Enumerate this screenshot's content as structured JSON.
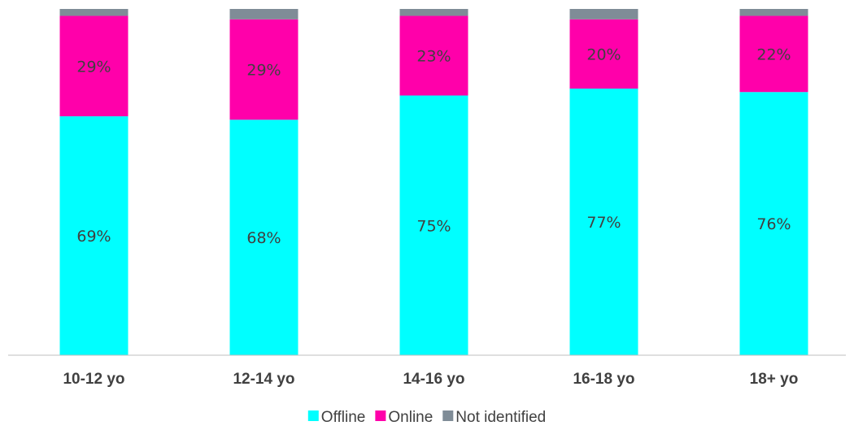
{
  "chart_data": {
    "type": "bar",
    "stacked": true,
    "percent_stacked": true,
    "categories": [
      "10-12 yo",
      "12-14 yo",
      "14-16 yo",
      "16-18 yo",
      "18+ yo"
    ],
    "series": [
      {
        "name": "Offline",
        "values": [
          69,
          68,
          75,
          77,
          76
        ],
        "labels": [
          "69%",
          "68%",
          "75%",
          "77%",
          "76%"
        ],
        "color": "#00FFFF"
      },
      {
        "name": "Online",
        "values": [
          29,
          29,
          23,
          20,
          22
        ],
        "labels": [
          "29%",
          "29%",
          "23%",
          "20%",
          "22%"
        ],
        "color": "#FF00AA"
      },
      {
        "name": "Not identified",
        "values": [
          2,
          3,
          2,
          3,
          2
        ],
        "color": "#7F8C97"
      }
    ],
    "ylim": [
      0,
      100
    ],
    "grid": false,
    "legend_position": "bottom",
    "title": "",
    "xlabel": "",
    "ylabel": ""
  }
}
